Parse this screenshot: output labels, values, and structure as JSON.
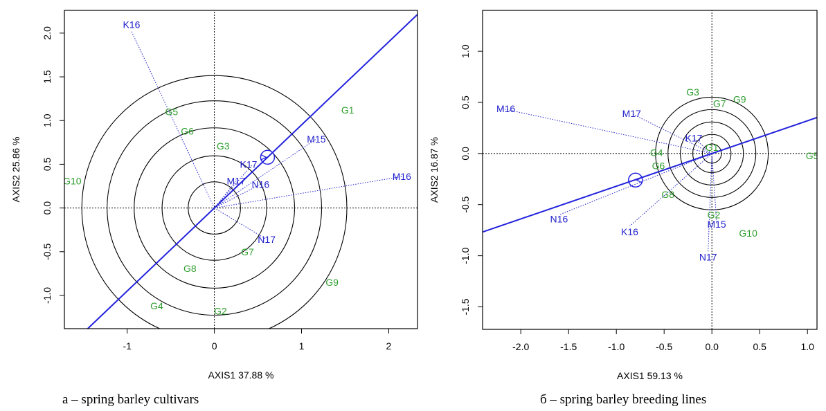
{
  "colors": {
    "genotype": "#2e9e2e",
    "environment": "#2222cc",
    "axis_line": "#2222dd",
    "frame": "#000000"
  },
  "charts": [
    {
      "caption": "a – spring barley cultivars",
      "chart_data": {
        "type": "scatter",
        "subtype": "GGE biplot (mean vs. stability)",
        "xlabel": "AXIS1 37.88 %",
        "ylabel": "AXIS2 25.86 %",
        "xlim": [
          -1.72,
          2.33
        ],
        "ylim": [
          -1.38,
          2.26
        ],
        "xticks": [
          -1,
          0,
          1,
          2
        ],
        "yticks": [
          -1.0,
          -0.5,
          0.0,
          0.5,
          1.0,
          1.5,
          2.0
        ],
        "tick_labels_x": [
          "-1",
          "0",
          "1",
          "2"
        ],
        "tick_labels_y": [
          "-1.0",
          "-0.5",
          "0.0",
          "0.5",
          "1.0",
          "1.5",
          "2.0"
        ],
        "origin_lines": true,
        "genotypes": [
          {
            "label": "G1",
            "x": 1.53,
            "y": 1.12
          },
          {
            "label": "G2",
            "x": 0.07,
            "y": -1.18
          },
          {
            "label": "G3",
            "x": 0.1,
            "y": 0.71
          },
          {
            "label": "G4",
            "x": -0.66,
            "y": -1.12
          },
          {
            "label": "G5",
            "x": -0.49,
            "y": 1.1
          },
          {
            "label": "G6",
            "x": -0.31,
            "y": 0.88
          },
          {
            "label": "G7",
            "x": 0.38,
            "y": -0.5
          },
          {
            "label": "G8",
            "x": -0.28,
            "y": -0.69
          },
          {
            "label": "G9",
            "x": 1.35,
            "y": -0.85
          },
          {
            "label": "G10",
            "x": -1.63,
            "y": 0.31
          }
        ],
        "environments": [
          {
            "label": "K16",
            "x": -0.95,
            "y": 2.02
          },
          {
            "label": "M15",
            "x": 1.17,
            "y": 0.79
          },
          {
            "label": "M16",
            "x": 2.15,
            "y": 0.36
          },
          {
            "label": "M17",
            "x": 0.25,
            "y": 0.31
          },
          {
            "label": "N16",
            "x": 0.53,
            "y": 0.27
          },
          {
            "label": "N17",
            "x": 0.6,
            "y": -0.36
          },
          {
            "label": "K17",
            "x": 0.44,
            "y": 0.5
          }
        ],
        "ave_point": {
          "x": 0.61,
          "y": 0.58
        },
        "ave_slope": 0.95,
        "circle_radii": [
          0.3,
          0.6,
          0.92,
          1.23,
          1.52
        ]
      }
    },
    {
      "caption": "б – spring barley breeding lines",
      "chart_data": {
        "type": "scatter",
        "subtype": "GGE biplot (mean vs. stability)",
        "xlabel": "AXIS1 59.13 %",
        "ylabel": "AXIS2 16.87 %",
        "xlim": [
          -2.4,
          1.1
        ],
        "ylim": [
          -1.72,
          1.4
        ],
        "xticks": [
          -2.0,
          -1.5,
          -1.0,
          -0.5,
          0.0,
          0.5,
          1.0
        ],
        "yticks": [
          -1.5,
          -1.0,
          -0.5,
          0.0,
          0.5,
          1.0
        ],
        "tick_labels_x": [
          "-2.0",
          "-1.5",
          "-1.0",
          "-0.5",
          "0.0",
          "0.5",
          "1.0"
        ],
        "tick_labels_y": [
          "-1.5",
          "-1.0",
          "-0.5",
          "0.0",
          "0.5",
          "1.0"
        ],
        "origin_lines": true,
        "genotypes": [
          {
            "label": "G1",
            "x": 0.0,
            "y": 0.06
          },
          {
            "label": "G2",
            "x": 0.02,
            "y": -0.6
          },
          {
            "label": "G3",
            "x": -0.2,
            "y": 0.6
          },
          {
            "label": "G4",
            "x": -0.58,
            "y": 0.01
          },
          {
            "label": "G5",
            "x": 1.05,
            "y": -0.02
          },
          {
            "label": "G6",
            "x": -0.56,
            "y": -0.12
          },
          {
            "label": "G7",
            "x": 0.08,
            "y": 0.49
          },
          {
            "label": "G8",
            "x": -0.46,
            "y": -0.4
          },
          {
            "label": "G9",
            "x": 0.29,
            "y": 0.53
          },
          {
            "label": "G10",
            "x": 0.38,
            "y": -0.78
          }
        ],
        "environments": [
          {
            "label": "M16",
            "x": -2.2,
            "y": 0.44
          },
          {
            "label": "M17",
            "x": -0.84,
            "y": 0.39
          },
          {
            "label": "K17",
            "x": -0.19,
            "y": 0.15
          },
          {
            "label": "N16",
            "x": -1.6,
            "y": -0.6
          },
          {
            "label": "K16",
            "x": -0.86,
            "y": -0.71
          },
          {
            "label": "M15",
            "x": 0.05,
            "y": -0.69
          },
          {
            "label": "N17",
            "x": -0.04,
            "y": -0.96
          }
        ],
        "ave_point": {
          "x": -0.8,
          "y": -0.26
        },
        "ave_slope": 0.32,
        "circle_radii": [
          0.1,
          0.2,
          0.33,
          0.46,
          0.59
        ]
      }
    }
  ]
}
